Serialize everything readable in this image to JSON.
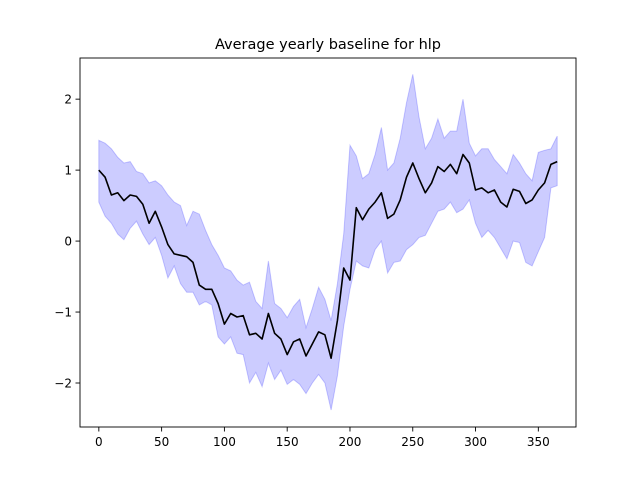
{
  "chart_data": {
    "type": "line",
    "title": "Average yearly baseline for hlp",
    "xlabel": "",
    "ylabel": "",
    "xlim": [
      -15,
      380
    ],
    "ylim": [
      -2.62,
      2.58
    ],
    "xticks": [
      0,
      50,
      100,
      150,
      200,
      250,
      300,
      350
    ],
    "yticks": [
      -2,
      -1,
      0,
      1,
      2
    ],
    "grid": false,
    "colors": {
      "mean": "#000000",
      "band": "#0000ff"
    },
    "series": [
      {
        "x": [
          0,
          5,
          10,
          15,
          20,
          25,
          30,
          35,
          40,
          45,
          50,
          55,
          60,
          65,
          70,
          75,
          80,
          85,
          90,
          95,
          100,
          105,
          110,
          115,
          120,
          125,
          130,
          135,
          140,
          145,
          150,
          155,
          160,
          165,
          170,
          175,
          180,
          185,
          190,
          195,
          200,
          205,
          210,
          215,
          220,
          225,
          230,
          235,
          240,
          245,
          250,
          255,
          260,
          265,
          270,
          275,
          280,
          285,
          290,
          295,
          300,
          305,
          310,
          315,
          320,
          325,
          330,
          335,
          340,
          345,
          350,
          355,
          360,
          365
        ],
        "y": [
          1.0,
          0.9,
          0.65,
          0.68,
          0.57,
          0.65,
          0.63,
          0.52,
          0.25,
          0.42,
          0.2,
          -0.05,
          -0.18,
          -0.2,
          -0.22,
          -0.3,
          -0.62,
          -0.68,
          -0.68,
          -0.88,
          -1.17,
          -1.02,
          -1.07,
          -1.05,
          -1.32,
          -1.3,
          -1.38,
          -1.02,
          -1.3,
          -1.38,
          -1.6,
          -1.42,
          -1.38,
          -1.62,
          -1.45,
          -1.28,
          -1.32,
          -1.65,
          -1.12,
          -0.38,
          -0.55,
          0.47,
          0.3,
          0.45,
          0.55,
          0.68,
          0.32,
          0.38,
          0.58,
          0.9,
          1.1,
          0.88,
          0.68,
          0.82,
          1.05,
          0.98,
          1.08,
          0.95,
          1.22,
          1.1,
          0.72,
          0.75,
          0.68,
          0.72,
          0.55,
          0.48,
          0.73,
          0.7,
          0.53,
          0.58,
          0.72,
          0.82,
          1.08,
          1.12
        ]
      },
      {
        "x": [
          0,
          5,
          10,
          15,
          20,
          25,
          30,
          35,
          40,
          45,
          50,
          55,
          60,
          65,
          70,
          75,
          80,
          85,
          90,
          95,
          100,
          105,
          110,
          115,
          120,
          125,
          130,
          135,
          140,
          145,
          150,
          155,
          160,
          165,
          170,
          175,
          180,
          185,
          190,
          195,
          200,
          205,
          210,
          215,
          220,
          225,
          230,
          235,
          240,
          245,
          250,
          255,
          260,
          265,
          270,
          275,
          280,
          285,
          290,
          295,
          300,
          305,
          310,
          315,
          320,
          325,
          330,
          335,
          340,
          345,
          350,
          355,
          360,
          365
        ],
        "upper": [
          1.42,
          1.38,
          1.3,
          1.18,
          1.1,
          1.12,
          0.98,
          0.95,
          0.82,
          0.85,
          0.78,
          0.65,
          0.55,
          0.5,
          0.22,
          0.42,
          0.38,
          0.15,
          -0.05,
          -0.2,
          -0.38,
          -0.42,
          -0.55,
          -0.62,
          -0.58,
          -0.85,
          -0.95,
          -0.28,
          -0.88,
          -0.95,
          -1.08,
          -0.92,
          -0.82,
          -1.22,
          -0.95,
          -0.65,
          -0.82,
          -1.12,
          -0.6,
          0.1,
          1.35,
          1.2,
          0.88,
          0.95,
          1.22,
          1.6,
          1.0,
          1.1,
          1.45,
          1.95,
          2.35,
          1.75,
          1.3,
          1.45,
          1.72,
          1.45,
          1.55,
          1.55,
          2.0,
          1.38,
          1.2,
          1.3,
          1.3,
          1.15,
          1.05,
          0.95,
          1.22,
          1.1,
          0.95,
          0.85,
          1.25,
          1.28,
          1.3,
          1.48
        ],
        "lower": [
          0.55,
          0.35,
          0.25,
          0.1,
          0.02,
          0.18,
          0.28,
          0.1,
          -0.05,
          0.05,
          -0.2,
          -0.52,
          -0.35,
          -0.6,
          -0.72,
          -0.72,
          -0.9,
          -0.85,
          -0.9,
          -1.35,
          -1.45,
          -1.35,
          -1.58,
          -1.6,
          -2.0,
          -1.85,
          -2.05,
          -1.72,
          -1.95,
          -1.82,
          -2.02,
          -1.95,
          -2.02,
          -2.15,
          -2.0,
          -1.88,
          -2.0,
          -2.38,
          -1.9,
          -1.2,
          -0.68,
          -0.28,
          -0.35,
          -0.38,
          -0.12,
          0.0,
          -0.45,
          -0.3,
          -0.28,
          -0.12,
          -0.05,
          0.05,
          0.08,
          0.25,
          0.42,
          0.45,
          0.55,
          0.4,
          0.45,
          0.58,
          0.25,
          0.05,
          0.15,
          0.05,
          -0.1,
          -0.25,
          0.0,
          -0.02,
          -0.3,
          -0.35,
          -0.15,
          0.05,
          0.75,
          0.78
        ]
      }
    ]
  }
}
